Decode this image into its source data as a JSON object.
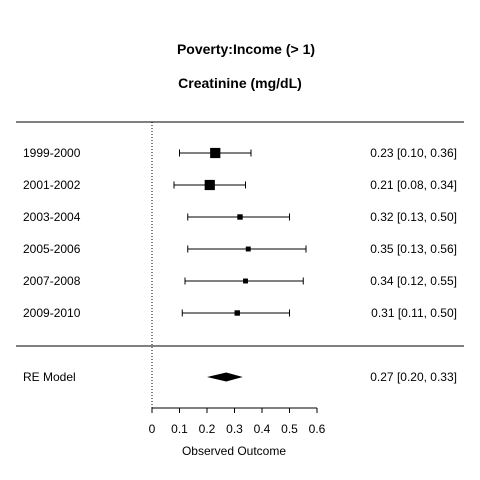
{
  "chart_data": {
    "type": "forest",
    "title": "Poverty:Income (> 1)",
    "subtitle": "Creatinine (mg/dL)",
    "xlabel": "Observed Outcome",
    "xlim": [
      0,
      0.6
    ],
    "xticks": [
      0,
      0.1,
      0.2,
      0.3,
      0.4,
      0.5,
      0.6
    ],
    "xtick_labels": [
      "0",
      "0.1",
      "0.2",
      "0.3",
      "0.4",
      "0.5",
      "0.6"
    ],
    "reference_line": 0,
    "studies": [
      {
        "label": "1999-2000",
        "estimate": 0.23,
        "lower": 0.1,
        "upper": 0.36,
        "ci_text": "0.23 [0.10, 0.36]",
        "weight": 3
      },
      {
        "label": "2001-2002",
        "estimate": 0.21,
        "lower": 0.08,
        "upper": 0.34,
        "ci_text": "0.21 [0.08, 0.34]",
        "weight": 3
      },
      {
        "label": "2003-2004",
        "estimate": 0.32,
        "lower": 0.13,
        "upper": 0.5,
        "ci_text": "0.32 [0.13, 0.50]",
        "weight": 1
      },
      {
        "label": "2005-2006",
        "estimate": 0.35,
        "lower": 0.13,
        "upper": 0.56,
        "ci_text": "0.35 [0.13, 0.56]",
        "weight": 0.8
      },
      {
        "label": "2007-2008",
        "estimate": 0.34,
        "lower": 0.12,
        "upper": 0.55,
        "ci_text": "0.34 [0.12, 0.55]",
        "weight": 0.8
      },
      {
        "label": "2009-2010",
        "estimate": 0.31,
        "lower": 0.11,
        "upper": 0.5,
        "ci_text": "0.31 [0.11, 0.50]",
        "weight": 1
      }
    ],
    "summary": {
      "label": "RE Model",
      "estimate": 0.27,
      "lower": 0.2,
      "upper": 0.33,
      "ci_text": "0.27 [0.20, 0.33]"
    }
  }
}
